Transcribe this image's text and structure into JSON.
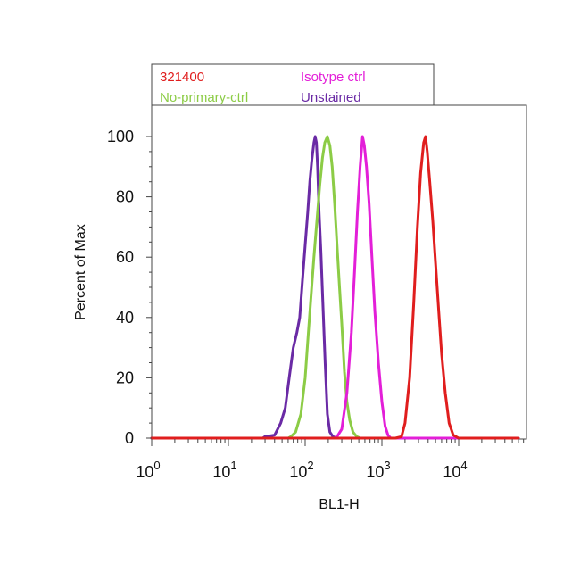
{
  "chart_data": {
    "type": "line",
    "xlabel": "BL1-H",
    "ylabel": "Percent of Max",
    "x_scale": "log",
    "xlim": [
      1,
      60000
    ],
    "ylim": [
      0,
      110
    ],
    "x_ticks": [
      {
        "value": 1,
        "base": "10",
        "exp": "0"
      },
      {
        "value": 10,
        "base": "10",
        "exp": "1"
      },
      {
        "value": 100,
        "base": "10",
        "exp": "2"
      },
      {
        "value": 1000,
        "base": "10",
        "exp": "3"
      },
      {
        "value": 10000,
        "base": "10",
        "exp": "4"
      }
    ],
    "y_ticks": [
      0,
      20,
      40,
      60,
      80,
      100
    ],
    "grid": false,
    "legend_position": "top-left",
    "series": [
      {
        "name": "Unstained",
        "color": "#6a2aa5",
        "points": [
          [
            1,
            0
          ],
          [
            28,
            0
          ],
          [
            30,
            0.5
          ],
          [
            40,
            1
          ],
          [
            48,
            5
          ],
          [
            55,
            10
          ],
          [
            62,
            20
          ],
          [
            70,
            30
          ],
          [
            78,
            35
          ],
          [
            85,
            40
          ],
          [
            92,
            52
          ],
          [
            100,
            64
          ],
          [
            108,
            75
          ],
          [
            115,
            85
          ],
          [
            122,
            92
          ],
          [
            130,
            98
          ],
          [
            135,
            100
          ],
          [
            140,
            98
          ],
          [
            145,
            90
          ],
          [
            152,
            75
          ],
          [
            160,
            62
          ],
          [
            170,
            45
          ],
          [
            182,
            25
          ],
          [
            195,
            8
          ],
          [
            210,
            2
          ],
          [
            230,
            0.5
          ],
          [
            260,
            0
          ],
          [
            60000,
            0
          ]
        ]
      },
      {
        "name": "No-primary-ctrl",
        "color": "#8ccc46",
        "points": [
          [
            1,
            0
          ],
          [
            60,
            0
          ],
          [
            65,
            0.5
          ],
          [
            75,
            2
          ],
          [
            88,
            8
          ],
          [
            100,
            20
          ],
          [
            110,
            35
          ],
          [
            120,
            48
          ],
          [
            130,
            60
          ],
          [
            142,
            72
          ],
          [
            155,
            84
          ],
          [
            168,
            93
          ],
          [
            180,
            98
          ],
          [
            195,
            100
          ],
          [
            210,
            97
          ],
          [
            225,
            90
          ],
          [
            242,
            78
          ],
          [
            260,
            64
          ],
          [
            280,
            50
          ],
          [
            300,
            38
          ],
          [
            325,
            22
          ],
          [
            350,
            12
          ],
          [
            380,
            6
          ],
          [
            420,
            2
          ],
          [
            470,
            0.5
          ],
          [
            520,
            0
          ],
          [
            60000,
            0
          ]
        ]
      },
      {
        "name": "Isotype ctrl",
        "color": "#e31fd8",
        "points": [
          [
            1,
            0
          ],
          [
            240,
            0
          ],
          [
            260,
            0.5
          ],
          [
            300,
            3
          ],
          [
            350,
            15
          ],
          [
            400,
            35
          ],
          [
            440,
            55
          ],
          [
            480,
            75
          ],
          [
            520,
            90
          ],
          [
            560,
            100
          ],
          [
            590,
            97
          ],
          [
            630,
            90
          ],
          [
            680,
            78
          ],
          [
            740,
            60
          ],
          [
            810,
            42
          ],
          [
            900,
            25
          ],
          [
            1000,
            12
          ],
          [
            1100,
            4
          ],
          [
            1200,
            1
          ],
          [
            1300,
            0
          ],
          [
            60000,
            0
          ]
        ]
      },
      {
        "name": "321400",
        "color": "#e01e1e",
        "points": [
          [
            1,
            0
          ],
          [
            1500,
            0
          ],
          [
            1800,
            0.5
          ],
          [
            2000,
            5
          ],
          [
            2300,
            20
          ],
          [
            2600,
            45
          ],
          [
            2900,
            70
          ],
          [
            3200,
            88
          ],
          [
            3500,
            98
          ],
          [
            3700,
            100
          ],
          [
            3900,
            95
          ],
          [
            4200,
            85
          ],
          [
            4600,
            72
          ],
          [
            5000,
            58
          ],
          [
            5500,
            42
          ],
          [
            6000,
            28
          ],
          [
            6700,
            15
          ],
          [
            7500,
            5
          ],
          [
            8500,
            1
          ],
          [
            10000,
            0
          ],
          [
            60000,
            0
          ]
        ]
      }
    ]
  }
}
